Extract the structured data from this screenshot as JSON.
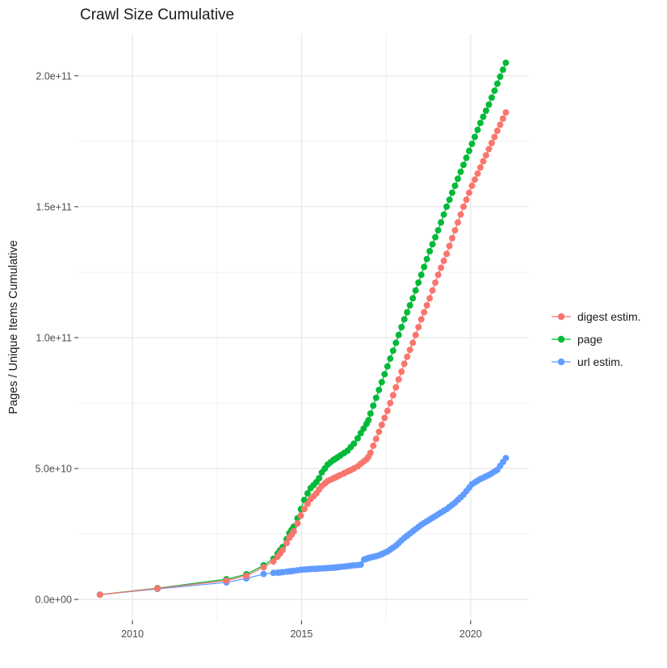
{
  "chart_data": {
    "type": "line",
    "title": "Crawl Size Cumulative",
    "xlabel": "",
    "ylabel": "Pages / Unique Items Cumulative",
    "legend_position": "right",
    "grid": true,
    "background": "#ffffff",
    "grid_major_color": "#e8e8e8",
    "grid_minor_color": "#f1f1f1",
    "tick_color": "#333333",
    "tick_label_color": "#4d4d4d",
    "text_color": "#1a1a1a",
    "value_unit_note": "point values are in billions (1e9) of pages / unique items",
    "x_domain": [
      2008.4,
      2021.7
    ],
    "y_domain_billions": [
      -8,
      216
    ],
    "x_ticks": {
      "major": [
        {
          "value": 2010,
          "label": "2010"
        },
        {
          "value": 2015,
          "label": "2015"
        },
        {
          "value": 2020,
          "label": "2020"
        }
      ],
      "minor": [
        2012.5,
        2017.5
      ]
    },
    "y_ticks": {
      "major": [
        {
          "value": 0,
          "label": "0.0e+00"
        },
        {
          "value": 50,
          "label": "5.0e+10"
        },
        {
          "value": 100,
          "label": "1.0e+11"
        },
        {
          "value": 150,
          "label": "1.5e+11"
        },
        {
          "value": 200,
          "label": "2.0e+11"
        }
      ],
      "minor": [
        25,
        75,
        125,
        175
      ]
    },
    "series": [
      {
        "name": "digest estim.",
        "color": "#F8766D",
        "points": [
          [
            2009.04,
            1.8
          ],
          [
            2010.74,
            4.2
          ],
          [
            2012.78,
            7.2
          ],
          [
            2013.37,
            9.0
          ],
          [
            2013.88,
            12.3
          ],
          [
            2014.17,
            14.5
          ],
          [
            2014.29,
            16.3
          ],
          [
            2014.44,
            18.8
          ],
          [
            2014.56,
            21.5
          ],
          [
            2014.64,
            23.5
          ],
          [
            2014.77,
            26.0
          ],
          [
            2014.88,
            29.0
          ],
          [
            2014.98,
            32.0
          ],
          [
            2015.08,
            34.5
          ],
          [
            2015.18,
            36.5
          ],
          [
            2015.27,
            38.3
          ],
          [
            2015.44,
            40.5
          ],
          [
            2015.52,
            42.0
          ],
          [
            2015.6,
            43.3
          ],
          [
            2015.69,
            44.3
          ],
          [
            2015.77,
            45.2
          ],
          [
            2015.94,
            46.2
          ],
          [
            2016.07,
            47.0
          ],
          [
            2016.15,
            47.5
          ],
          [
            2016.36,
            48.8
          ],
          [
            2016.55,
            50.0
          ],
          [
            2016.66,
            50.8
          ],
          [
            2016.75,
            51.8
          ],
          [
            2016.92,
            53.5
          ],
          [
            2016.98,
            54.5
          ],
          [
            2017.04,
            56.0
          ],
          [
            2017.29,
            64.0
          ],
          [
            2017.54,
            72.0
          ],
          [
            2017.79,
            81.0
          ],
          [
            2018.04,
            90.0
          ],
          [
            2018.29,
            98.0
          ],
          [
            2018.54,
            107.0
          ],
          [
            2018.79,
            115.0
          ],
          [
            2019.04,
            124.0
          ],
          [
            2019.29,
            132.0
          ],
          [
            2019.54,
            141.0
          ],
          [
            2019.79,
            150.0
          ],
          [
            2020.04,
            158.0
          ],
          [
            2020.29,
            165.0
          ],
          [
            2020.54,
            172.0
          ],
          [
            2020.79,
            179.0
          ],
          [
            2021.04,
            186.0
          ]
        ]
      },
      {
        "name": "page",
        "color": "#00BA38",
        "points": [
          [
            2009.04,
            1.8
          ],
          [
            2010.74,
            4.3
          ],
          [
            2012.78,
            7.7
          ],
          [
            2013.37,
            9.6
          ],
          [
            2013.88,
            13.0
          ],
          [
            2014.17,
            15.5
          ],
          [
            2014.29,
            17.5
          ],
          [
            2014.44,
            20.0
          ],
          [
            2014.56,
            23.0
          ],
          [
            2014.64,
            25.3
          ],
          [
            2014.77,
            27.8
          ],
          [
            2014.88,
            31.0
          ],
          [
            2014.98,
            34.5
          ],
          [
            2015.08,
            38.0
          ],
          [
            2015.18,
            40.5
          ],
          [
            2015.27,
            42.5
          ],
          [
            2015.44,
            44.8
          ],
          [
            2015.52,
            46.3
          ],
          [
            2015.6,
            48.5
          ],
          [
            2015.69,
            50.0
          ],
          [
            2015.77,
            51.5
          ],
          [
            2015.94,
            53.2
          ],
          [
            2016.07,
            54.3
          ],
          [
            2016.15,
            55.0
          ],
          [
            2016.36,
            56.8
          ],
          [
            2016.55,
            59.5
          ],
          [
            2016.66,
            61.5
          ],
          [
            2016.75,
            63.5
          ],
          [
            2016.92,
            67.0
          ],
          [
            2016.98,
            68.5
          ],
          [
            2017.04,
            71.0
          ],
          [
            2017.29,
            80.0
          ],
          [
            2017.54,
            89.0
          ],
          [
            2017.79,
            98.0
          ],
          [
            2018.04,
            107.0
          ],
          [
            2018.29,
            115.0
          ],
          [
            2018.54,
            124.0
          ],
          [
            2018.79,
            133.0
          ],
          [
            2019.04,
            141.0
          ],
          [
            2019.29,
            150.0
          ],
          [
            2019.54,
            158.0
          ],
          [
            2019.79,
            166.0
          ],
          [
            2020.04,
            174.0
          ],
          [
            2020.29,
            182.0
          ],
          [
            2020.54,
            189.0
          ],
          [
            2020.79,
            197.0
          ],
          [
            2021.04,
            205.0
          ]
        ]
      },
      {
        "name": "url estim.",
        "color": "#619CFF",
        "points": [
          [
            2009.04,
            1.8
          ],
          [
            2010.74,
            4.0
          ],
          [
            2012.78,
            6.5
          ],
          [
            2013.37,
            8.0
          ],
          [
            2013.88,
            9.7
          ],
          [
            2014.17,
            10.1
          ],
          [
            2014.29,
            10.2
          ],
          [
            2014.44,
            10.4
          ],
          [
            2014.56,
            10.6
          ],
          [
            2014.64,
            10.7
          ],
          [
            2014.77,
            10.9
          ],
          [
            2014.88,
            11.1
          ],
          [
            2014.98,
            11.3
          ],
          [
            2015.08,
            11.4
          ],
          [
            2015.18,
            11.5
          ],
          [
            2015.27,
            11.6
          ],
          [
            2015.44,
            11.7
          ],
          [
            2015.52,
            11.8
          ],
          [
            2015.6,
            11.85
          ],
          [
            2015.69,
            11.9
          ],
          [
            2015.77,
            12.0
          ],
          [
            2015.94,
            12.1
          ],
          [
            2016.07,
            12.3
          ],
          [
            2016.15,
            12.4
          ],
          [
            2016.36,
            12.7
          ],
          [
            2016.55,
            13.0
          ],
          [
            2016.66,
            13.1
          ],
          [
            2016.75,
            13.3
          ],
          [
            2016.85,
            15.2
          ],
          [
            2016.98,
            15.8
          ],
          [
            2017.04,
            16.0
          ],
          [
            2017.29,
            16.8
          ],
          [
            2017.54,
            18.3
          ],
          [
            2017.79,
            20.5
          ],
          [
            2018.04,
            23.5
          ],
          [
            2018.29,
            26.0
          ],
          [
            2018.54,
            28.5
          ],
          [
            2018.79,
            30.5
          ],
          [
            2019.04,
            32.5
          ],
          [
            2019.29,
            34.5
          ],
          [
            2019.54,
            37.0
          ],
          [
            2019.79,
            40.0
          ],
          [
            2020.04,
            44.0
          ],
          [
            2020.29,
            46.0
          ],
          [
            2020.54,
            47.5
          ],
          [
            2020.79,
            49.5
          ],
          [
            2021.04,
            54.0
          ]
        ]
      }
    ]
  }
}
